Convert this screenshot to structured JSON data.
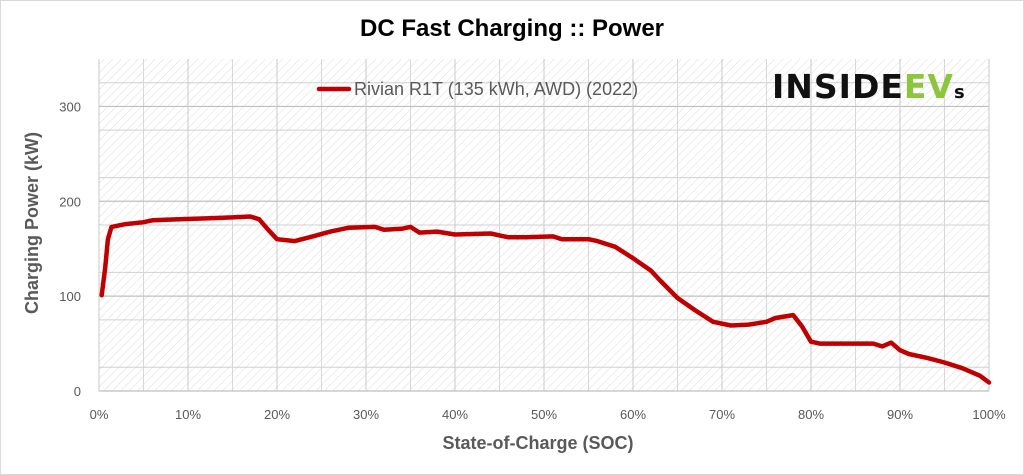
{
  "colors": {
    "line": "#c00000",
    "gridline": "#bfbfbf",
    "hatch": "#d9d9d9",
    "brand_dark": "#111111",
    "brand_green": "#8cc63f"
  },
  "brand": {
    "part1": "INSIDE",
    "part2": "EV",
    "part3": "s"
  },
  "chart_data": {
    "type": "line",
    "title": "DC Fast Charging :: Power",
    "xlabel": "State-of-Charge  (SOC)",
    "ylabel": "Charging Power (kW)",
    "xlim": [
      0,
      100
    ],
    "ylim": [
      0,
      350
    ],
    "grid": true,
    "legend_position": "top",
    "x_ticks": [
      "0%",
      "10%",
      "20%",
      "30%",
      "40%",
      "50%",
      "60%",
      "70%",
      "80%",
      "90%",
      "100%"
    ],
    "y_ticks": [
      "0",
      "100",
      "200",
      "300"
    ],
    "series": [
      {
        "name": "Rivian R1T (135 kWh, AWD) (2022)",
        "color": "#c00000",
        "points": [
          [
            0.3,
            101
          ],
          [
            0.7,
            130
          ],
          [
            1.0,
            160
          ],
          [
            1.4,
            173
          ],
          [
            3,
            176
          ],
          [
            5,
            178
          ],
          [
            6,
            180
          ],
          [
            9,
            181
          ],
          [
            12,
            182
          ],
          [
            15,
            183
          ],
          [
            17,
            184
          ],
          [
            18,
            181
          ],
          [
            19,
            170
          ],
          [
            20,
            160
          ],
          [
            22,
            158
          ],
          [
            24,
            163
          ],
          [
            26,
            168
          ],
          [
            28,
            172
          ],
          [
            31,
            173
          ],
          [
            32,
            170
          ],
          [
            34,
            171
          ],
          [
            35,
            173
          ],
          [
            36,
            167
          ],
          [
            38,
            168
          ],
          [
            40,
            165
          ],
          [
            44,
            166
          ],
          [
            46,
            162
          ],
          [
            48,
            162
          ],
          [
            51,
            163
          ],
          [
            52,
            160
          ],
          [
            55,
            160
          ],
          [
            56,
            158
          ],
          [
            58,
            152
          ],
          [
            60,
            140
          ],
          [
            62,
            127
          ],
          [
            63,
            117
          ],
          [
            65,
            98
          ],
          [
            67,
            85
          ],
          [
            69,
            73
          ],
          [
            71,
            69
          ],
          [
            73,
            70
          ],
          [
            75,
            73
          ],
          [
            76,
            77
          ],
          [
            78,
            80
          ],
          [
            79,
            68
          ],
          [
            80,
            52
          ],
          [
            81,
            50
          ],
          [
            87,
            50
          ],
          [
            88,
            47
          ],
          [
            89,
            51
          ],
          [
            90,
            43
          ],
          [
            91,
            39
          ],
          [
            93,
            35
          ],
          [
            95,
            30
          ],
          [
            97,
            24
          ],
          [
            99,
            16
          ],
          [
            100,
            9
          ]
        ]
      }
    ]
  }
}
